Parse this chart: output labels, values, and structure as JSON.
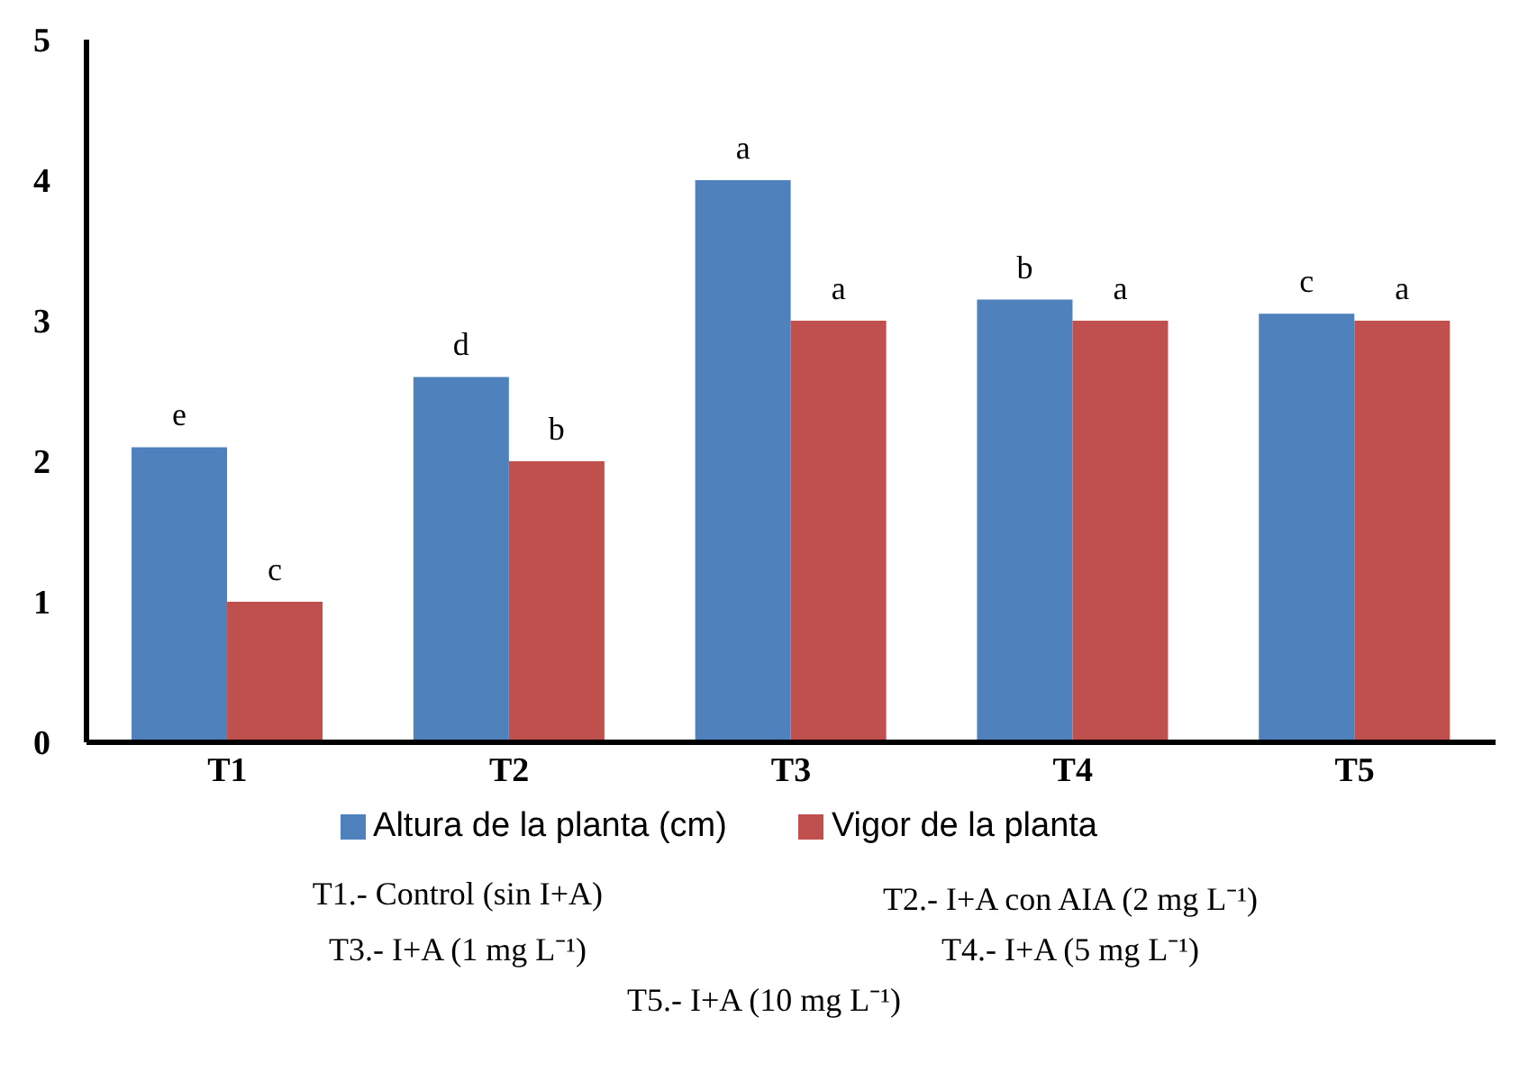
{
  "chart_data": {
    "type": "bar",
    "categories": [
      "T1",
      "T2",
      "T3",
      "T4",
      "T5"
    ],
    "series": [
      {
        "name": "Altura de la planta (cm)",
        "color": "#4f81bd",
        "values": [
          2.1,
          2.6,
          4.0,
          3.15,
          3.05
        ],
        "value_labels": [
          "e",
          "d",
          "a",
          "b",
          "c"
        ]
      },
      {
        "name": "Vigor de la planta",
        "color": "#c0504d",
        "values": [
          1,
          2,
          3,
          3,
          3
        ],
        "value_labels": [
          "c",
          "b",
          "a",
          "a",
          "a"
        ]
      }
    ],
    "ylim": [
      0,
      5
    ],
    "yticks": [
      0,
      1,
      2,
      3,
      4,
      5
    ],
    "grid": false,
    "legend": "bottom",
    "annotations": [
      "T1.- Control (sin I+A)",
      "T2.- I+A con AIA (2 mg L⁻¹)",
      "T3.- I+A (1 mg L⁻¹)",
      "T4.- I+A (5 mg L⁻¹)",
      "T5.- I+A (10 mg L⁻¹)"
    ]
  }
}
